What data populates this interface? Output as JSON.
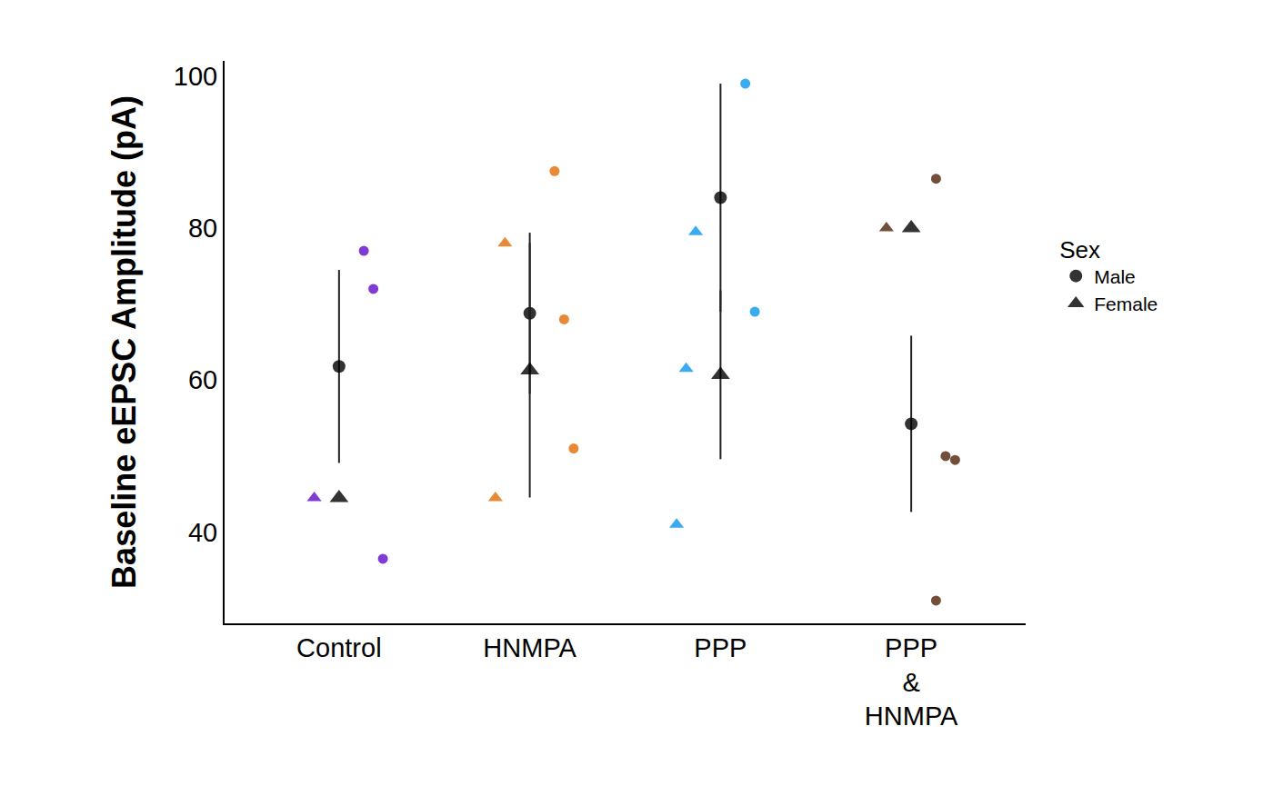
{
  "chart_data": {
    "type": "scatter",
    "y_label": "Baseline eEPSC Amplitude (pA)",
    "categories": [
      "Control",
      "HNMPA",
      "PPP",
      "PPP\n&\nHNMPA"
    ],
    "colors": [
      "#7b2fd4",
      "#e8832a",
      "#2ea7f2",
      "#6b4530"
    ],
    "ylim": [
      28,
      102
    ],
    "yticks": [
      40,
      60,
      80,
      100
    ],
    "grid": false,
    "legend": "right",
    "legend_title": "Sex",
    "series": [
      {
        "name": "Male",
        "marker": "circle",
        "color": "#000000",
        "points": [
          [
            77,
            72,
            36.5
          ],
          [
            87.5,
            68,
            51
          ],
          [
            99,
            69
          ],
          [
            86.5,
            50,
            49.5,
            31
          ]
        ],
        "values": [
          61.8,
          68.8,
          84,
          54.25
        ],
        "error": [
          12.7,
          10.6,
          15,
          11.6
        ]
      },
      {
        "name": "Female",
        "marker": "triangle-up",
        "color": "#000000",
        "points": [
          [
            44.5
          ],
          [
            78,
            44.5
          ],
          [
            79.5,
            61.5,
            41
          ],
          [
            80
          ]
        ],
        "values": [
          44.5,
          61.3,
          60.7,
          80
        ],
        "error": [
          null,
          16.75,
          11.1,
          null
        ]
      }
    ]
  }
}
